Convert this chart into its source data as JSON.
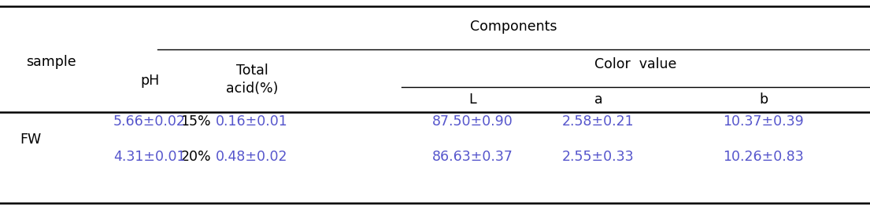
{
  "components_label": "Components",
  "sample_label": "sample",
  "ph_label": "pH",
  "total_acid_label": "Total\nacid(%)",
  "color_value_label": "Color  value",
  "L_label": "L",
  "a_label": "a",
  "b_label": "b",
  "rows": [
    {
      "group": "FW",
      "subgroup": "15%",
      "ph": "5.66±0.02",
      "total_acid": "0.16±0.01",
      "L": "87.50±0.90",
      "a": "2.58±0.21",
      "b": "10.37±0.39"
    },
    {
      "group": "FW",
      "subgroup": "20%",
      "ph": "4.31±0.01",
      "total_acid": "0.48±0.02",
      "L": "86.63±0.37",
      "a": "2.55±0.33",
      "b": "10.26±0.83"
    }
  ],
  "data_color": "#5555cc",
  "header_color": "#000000",
  "background_color": "#ffffff",
  "font_size": 12.5
}
